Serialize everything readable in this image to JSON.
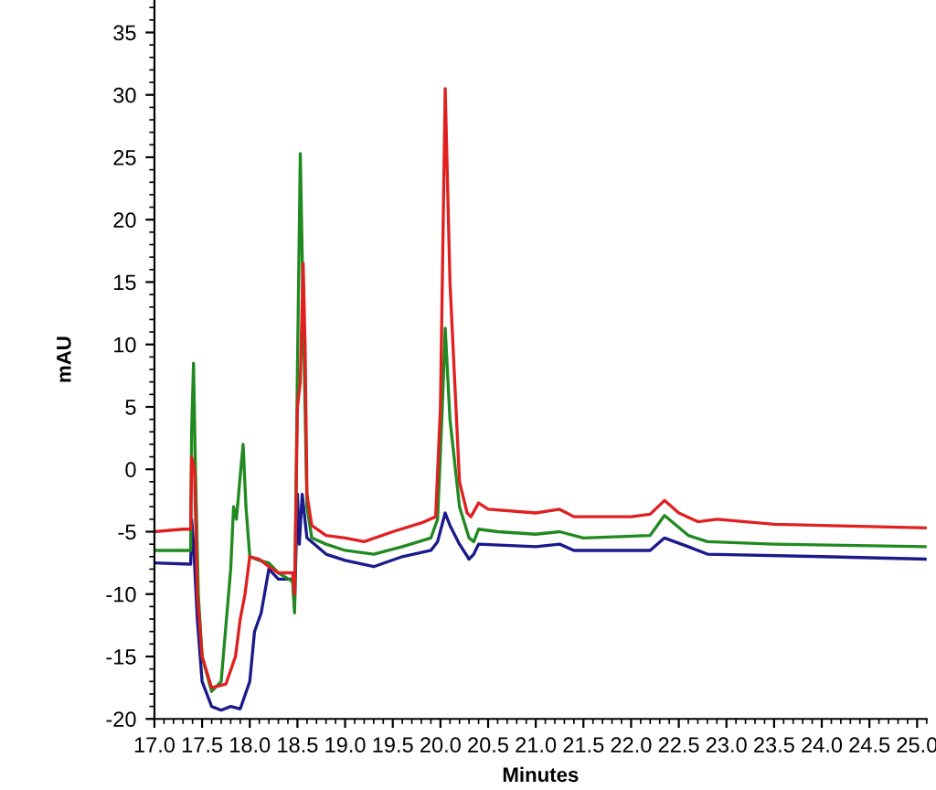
{
  "chart_data": {
    "type": "line",
    "xlabel": "Minutes",
    "ylabel": "mAU",
    "xlim": [
      17.0,
      25.1
    ],
    "ylim": [
      -20,
      37.6
    ],
    "xticks": [
      {
        "value": 17.0,
        "label": "17.0"
      },
      {
        "value": 17.5,
        "label": "17.5"
      },
      {
        "value": 18.0,
        "label": "18.0"
      },
      {
        "value": 18.5,
        "label": "18.5"
      },
      {
        "value": 19.0,
        "label": "19.0"
      },
      {
        "value": 19.5,
        "label": "19.5"
      },
      {
        "value": 20.0,
        "label": "20.0"
      },
      {
        "value": 20.5,
        "label": "20.5"
      },
      {
        "value": 21.0,
        "label": "21.0"
      },
      {
        "value": 21.5,
        "label": "21.5"
      },
      {
        "value": 22.0,
        "label": "22.0"
      },
      {
        "value": 22.5,
        "label": "22.5"
      },
      {
        "value": 23.0,
        "label": "23.0"
      },
      {
        "value": 23.5,
        "label": "23.5"
      },
      {
        "value": 24.0,
        "label": "24.0"
      },
      {
        "value": 24.5,
        "label": "24.5"
      },
      {
        "value": 25.0,
        "label": "25.0"
      }
    ],
    "yticks": [
      -20,
      -15,
      -10,
      -5,
      0,
      5,
      10,
      15,
      20,
      25,
      30,
      35
    ],
    "grid": false,
    "legend": false,
    "marker": "none",
    "line_style": "solid",
    "series": [
      {
        "color": "#1a1a8c",
        "x": [
          17.0,
          17.38,
          17.39,
          17.41,
          17.45,
          17.5,
          17.6,
          17.7,
          17.8,
          17.9,
          18.0,
          18.05,
          18.12,
          18.2,
          18.3,
          18.45,
          18.47,
          18.5,
          18.52,
          18.55,
          18.6,
          18.8,
          19.0,
          19.3,
          19.6,
          19.9,
          19.97,
          20.05,
          20.1,
          20.2,
          20.3,
          20.35,
          20.4,
          21.0,
          21.25,
          21.4,
          22.2,
          22.35,
          22.6,
          22.8,
          24.0,
          25.1
        ],
        "values": [
          -7.5,
          -7.6,
          -4,
          -6,
          -12,
          -17,
          -19,
          -19.3,
          -19,
          -19.2,
          -17,
          -13,
          -11.5,
          -8,
          -8.8,
          -8.8,
          -11,
          -2,
          -6,
          -2,
          -5.5,
          -6.8,
          -7.3,
          -7.8,
          -7,
          -6.5,
          -5.8,
          -3.5,
          -4.5,
          -6,
          -7.2,
          -6.8,
          -6,
          -6.2,
          -6,
          -6.5,
          -6.5,
          -5.5,
          -6.2,
          -6.8,
          -7,
          -7.2
        ]
      },
      {
        "color": "#208a20",
        "x": [
          17.0,
          17.38,
          17.39,
          17.41,
          17.43,
          17.46,
          17.5,
          17.6,
          17.7,
          17.8,
          17.83,
          17.86,
          17.9,
          17.93,
          17.96,
          18.0,
          18.1,
          18.2,
          18.3,
          18.45,
          18.47,
          18.5,
          18.53,
          18.56,
          18.6,
          18.65,
          18.8,
          19.0,
          19.3,
          19.6,
          19.9,
          19.97,
          20.02,
          20.05,
          20.1,
          20.2,
          20.3,
          20.35,
          20.4,
          20.6,
          21.0,
          21.25,
          21.5,
          22.2,
          22.35,
          22.6,
          22.8,
          23.5,
          25.1
        ],
        "values": [
          -6.5,
          -6.5,
          3,
          8.5,
          0,
          -10,
          -15,
          -17.8,
          -17,
          -8,
          -3,
          -4,
          -0.5,
          2,
          -3,
          -7,
          -7.3,
          -7.5,
          -8.3,
          -9,
          -11.5,
          8,
          25.3,
          13,
          -3,
          -5.5,
          -6,
          -6.5,
          -6.8,
          -6.2,
          -5.5,
          -4,
          5,
          11.3,
          4,
          -3,
          -5.5,
          -5.8,
          -4.8,
          -5,
          -5.2,
          -5,
          -5.5,
          -5.3,
          -3.7,
          -5.3,
          -5.8,
          -6,
          -6.2
        ]
      },
      {
        "color": "#e02020",
        "x": [
          17.0,
          17.3,
          17.38,
          17.39,
          17.42,
          17.45,
          17.5,
          17.6,
          17.75,
          17.85,
          17.9,
          17.95,
          18.0,
          18.1,
          18.2,
          18.3,
          18.45,
          18.47,
          18.5,
          18.53,
          18.56,
          18.58,
          18.6,
          18.65,
          18.8,
          19.0,
          19.2,
          19.5,
          19.8,
          19.95,
          20.0,
          20.05,
          20.1,
          20.2,
          20.28,
          20.32,
          20.4,
          20.5,
          21.0,
          21.25,
          21.4,
          22.0,
          22.2,
          22.35,
          22.5,
          22.7,
          22.9,
          23.5,
          24.0,
          25.1
        ],
        "values": [
          -5,
          -4.8,
          -4.8,
          1,
          0,
          -10,
          -15,
          -17.5,
          -17.2,
          -15,
          -12,
          -10,
          -7,
          -7.2,
          -7.8,
          -8.3,
          -8.3,
          -10,
          5,
          7,
          16.5,
          10,
          -2,
          -4.5,
          -5.3,
          -5.5,
          -5.8,
          -5,
          -4.3,
          -3.8,
          5,
          30.5,
          15,
          -1,
          -3.5,
          -3.8,
          -2.7,
          -3.2,
          -3.5,
          -3.2,
          -3.8,
          -3.8,
          -3.6,
          -2.5,
          -3.5,
          -4.2,
          -4,
          -4.4,
          -4.5,
          -4.7
        ]
      }
    ]
  }
}
